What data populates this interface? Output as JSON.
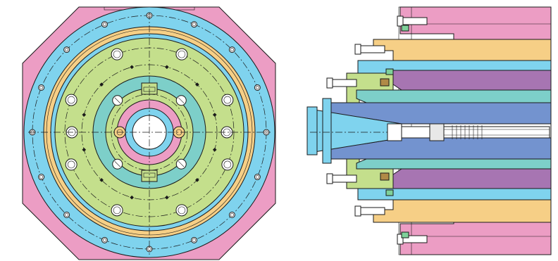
{
  "colors": {
    "housing": "#ec9dc4",
    "outer_ring": "#7fd3ee",
    "bearing": "#f6cf86",
    "flange": "#c4df8c",
    "inner_ring": "#7dcfc9",
    "shaft": "#7393cf",
    "rotor": "#a775b2",
    "bore": "#ffffff",
    "line": "#1a1a1a"
  },
  "views": [
    {
      "name": "front-view"
    },
    {
      "name": "section-view"
    }
  ]
}
